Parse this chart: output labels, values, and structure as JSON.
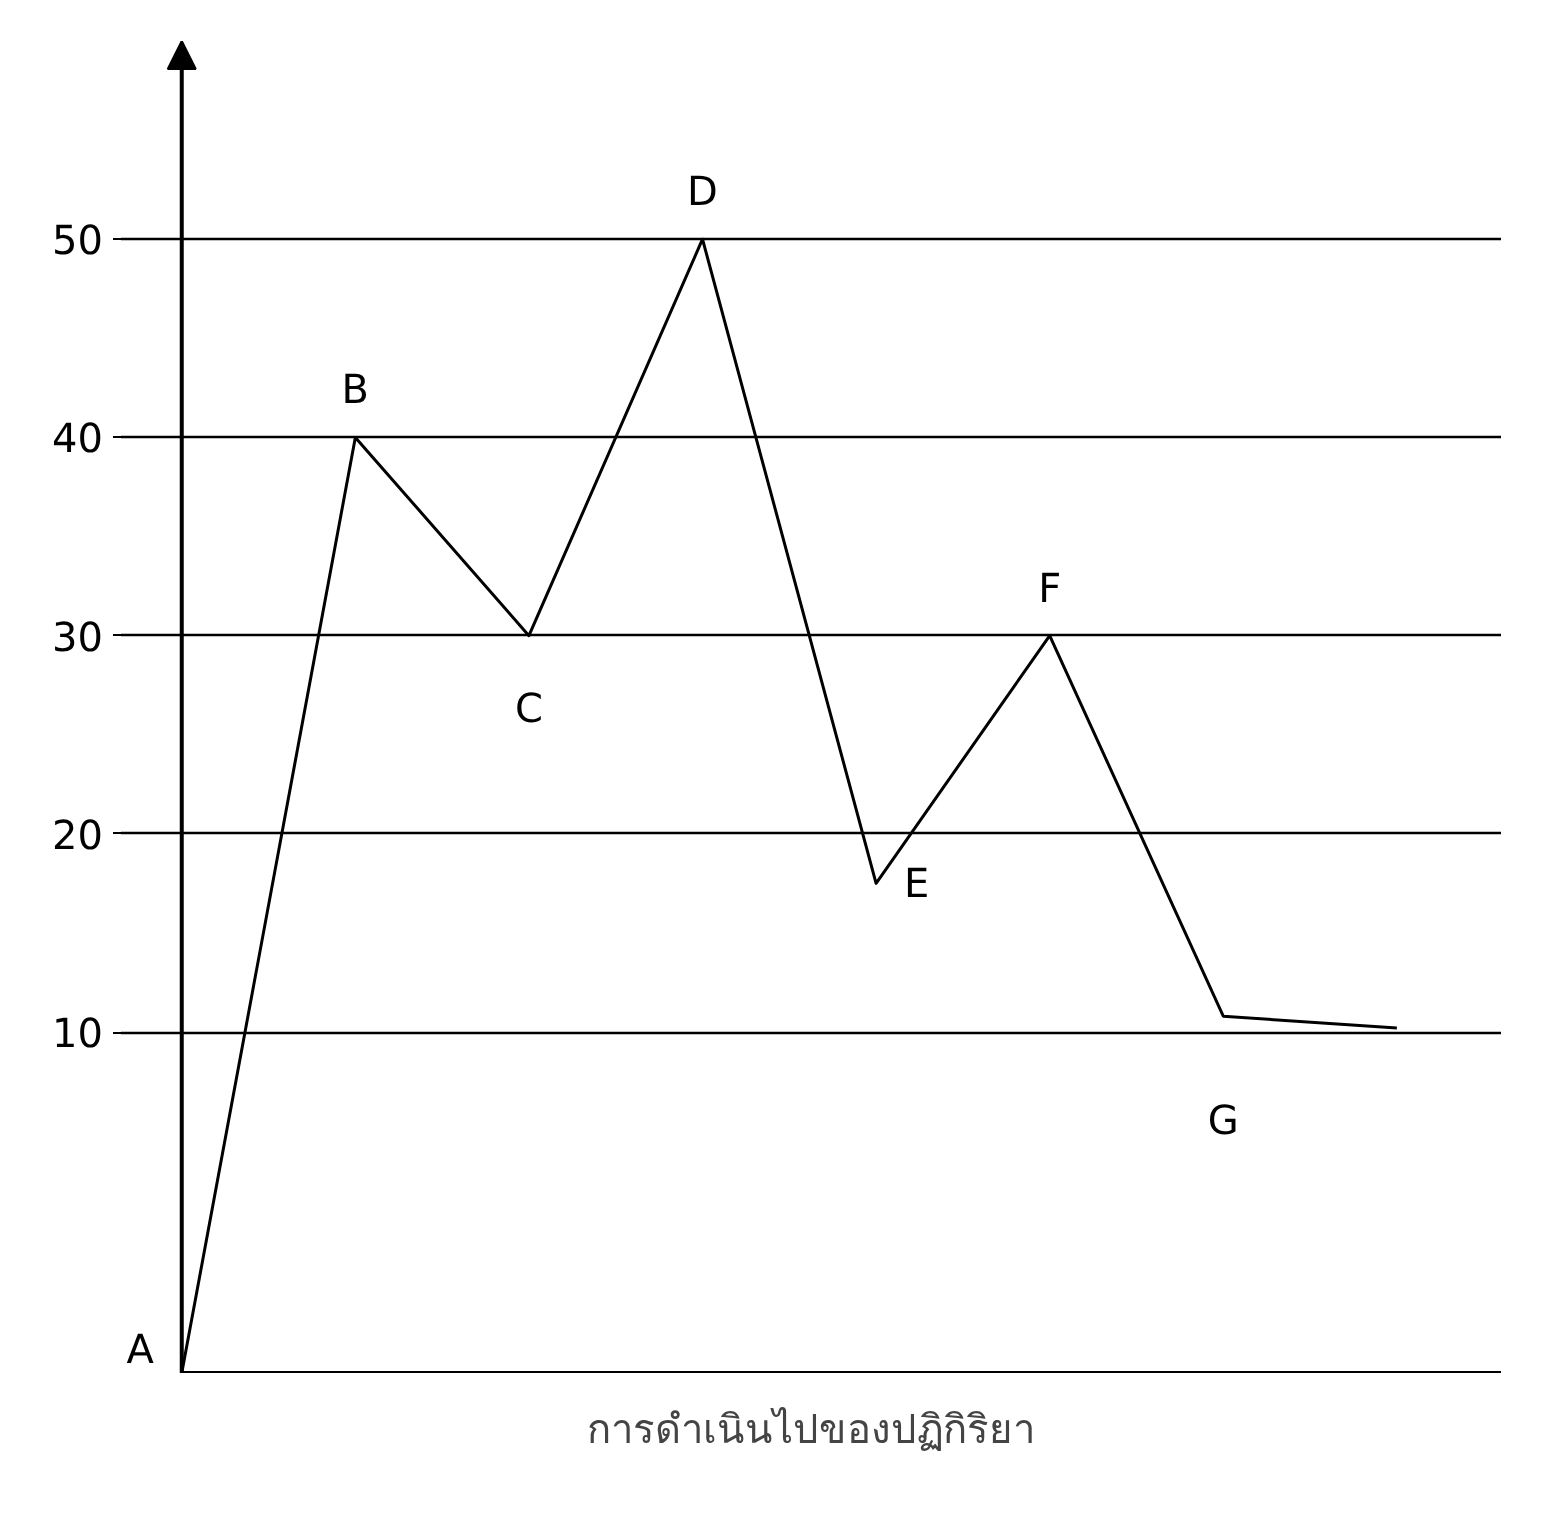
{
  "chart_data": {
    "type": "line",
    "xlabel": "การดำเนินไปของปฏิกิริยา",
    "categories": [
      null,
      null,
      null,
      null,
      null,
      null,
      null,
      null
    ],
    "series": [
      {
        "color": "#000000",
        "values": [
          -7.2,
          40,
          30,
          50,
          17.5,
          30,
          10.8,
          10.2
        ]
      }
    ],
    "ylim": [
      -7.2,
      60
    ],
    "yticks": [
      10,
      20,
      30,
      40,
      50
    ],
    "grid": "y",
    "tick_labels": "y",
    "marker": "none",
    "line_style": "solid",
    "annotations": [
      "A",
      "B",
      "C",
      "D",
      "E",
      "F",
      "G"
    ]
  }
}
